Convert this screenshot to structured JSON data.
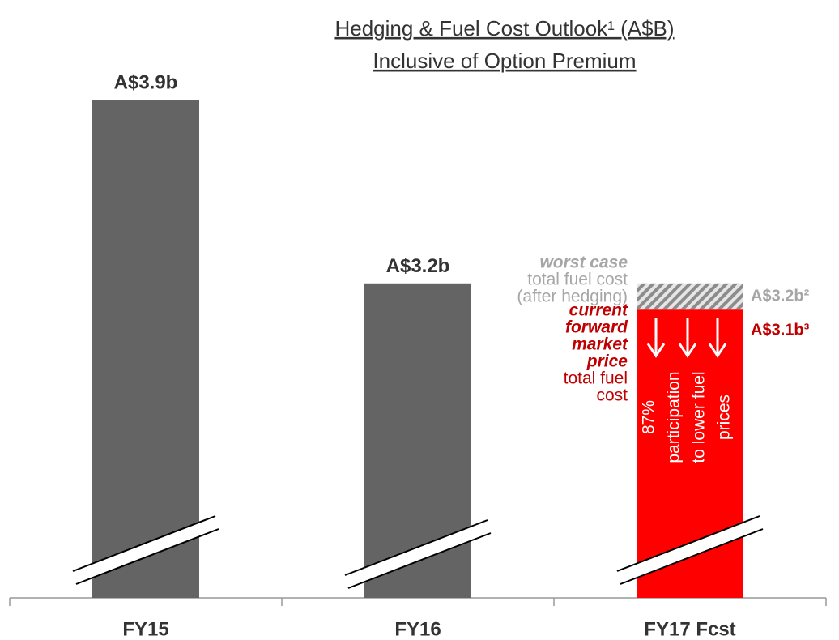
{
  "chart_data": {
    "type": "bar",
    "title": "Hedging & Fuel Cost Outlook¹ (A$B)",
    "subtitle": "Inclusive of Option Premium",
    "categories": [
      "FY15",
      "FY16",
      "FY17 Fcst"
    ],
    "values": [
      3.9,
      3.2,
      3.1
    ],
    "value_labels": [
      "A$3.9b",
      "A$3.2b",
      "A$3.1b³"
    ],
    "colors": [
      "#646464",
      "#646464",
      "#ff0000"
    ],
    "worst_case": {
      "value": 3.2,
      "label": "A$3.2b²",
      "color": "#a6a6a6"
    },
    "annotations": {
      "worst_case": [
        "worst case",
        "total fuel cost",
        "(after hedging)"
      ],
      "forward": [
        "current",
        "forward",
        "market",
        "price",
        "total fuel",
        "cost"
      ],
      "bar_note": [
        "87%",
        "participation",
        "to lower fuel",
        "prices"
      ]
    },
    "ylim": [
      2,
      4
    ]
  }
}
